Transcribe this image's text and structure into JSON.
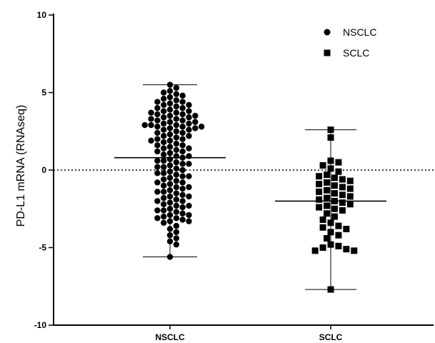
{
  "chart_data": {
    "type": "scatter",
    "ylabel": "PD-L1 mRNA (RNAseq)",
    "ylim": [
      -10,
      10
    ],
    "yticks": [
      10,
      5,
      0,
      -5,
      -10
    ],
    "reference_line_y": 0,
    "reference_line_style": "dotted",
    "categories": [
      "NSCLC",
      "SCLC"
    ],
    "legend": {
      "placement": "top-right"
    },
    "series": [
      {
        "name": "NSCLC",
        "marker": "circle",
        "mean": 0.8,
        "error_range": [
          -5.6,
          5.5
        ],
        "values": [
          5.5,
          5.3,
          5.1,
          5.0,
          4.9,
          4.8,
          4.7,
          4.6,
          4.5,
          4.4,
          4.4,
          4.3,
          4.2,
          4.2,
          4.1,
          4.0,
          4.0,
          3.9,
          3.8,
          3.8,
          3.7,
          3.7,
          3.6,
          3.5,
          3.5,
          3.4,
          3.3,
          3.3,
          3.2,
          3.2,
          3.1,
          3.0,
          3.0,
          2.9,
          2.9,
          2.8,
          2.8,
          2.8,
          2.7,
          2.7,
          2.6,
          2.6,
          2.5,
          2.4,
          2.3,
          2.2,
          2.1,
          2.0,
          2.0,
          1.9,
          1.8,
          1.7,
          1.6,
          1.5,
          1.4,
          1.3,
          1.2,
          1.1,
          1.0,
          0.9,
          0.8,
          0.7,
          0.6,
          0.5,
          0.4,
          0.3,
          0.2,
          0.1,
          0.0,
          -0.1,
          -0.2,
          -0.3,
          -0.4,
          -0.5,
          -0.6,
          -0.7,
          -0.8,
          -0.9,
          -1.0,
          -1.1,
          -1.2,
          -1.3,
          -1.4,
          -1.5,
          -1.6,
          -1.7,
          -1.8,
          -1.9,
          -2.0,
          -2.1,
          -2.2,
          -2.3,
          -2.4,
          -2.5,
          -2.6,
          -2.7,
          -2.8,
          -2.9,
          -3.0,
          -3.1,
          -3.2,
          -3.3,
          -3.4,
          -3.6,
          -3.8,
          -4.0,
          -4.2,
          -4.4,
          -4.6,
          -4.8,
          -5.6,
          3.6,
          3.4,
          3.1,
          2.9,
          2.4,
          2.2,
          1.9,
          1.6,
          1.4,
          1.2,
          0.9,
          0.6,
          0.4,
          0.2,
          -0.2,
          -0.4,
          -0.8,
          -1.1,
          -1.4,
          -1.7,
          -2.0,
          -2.3,
          -2.6,
          -2.9,
          -3.1,
          -3.3
        ]
      },
      {
        "name": "SCLC",
        "marker": "square",
        "mean": -2.0,
        "error_range": [
          -7.7,
          2.6
        ],
        "values": [
          2.6,
          2.1,
          0.6,
          0.5,
          0.3,
          0.1,
          -0.1,
          -0.3,
          -0.4,
          -0.5,
          -0.6,
          -0.7,
          -0.8,
          -0.9,
          -1.0,
          -1.1,
          -1.2,
          -1.3,
          -1.4,
          -1.5,
          -1.6,
          -1.7,
          -1.8,
          -1.9,
          -2.0,
          -2.1,
          -2.2,
          -2.3,
          -2.4,
          -2.5,
          -2.6,
          -2.8,
          -3.0,
          -3.2,
          -3.4,
          -3.6,
          -3.7,
          -3.8,
          -4.0,
          -4.2,
          -4.4,
          -4.8,
          -4.9,
          -5.0,
          -5.1,
          -5.2,
          -5.2,
          -7.7
        ]
      }
    ]
  }
}
